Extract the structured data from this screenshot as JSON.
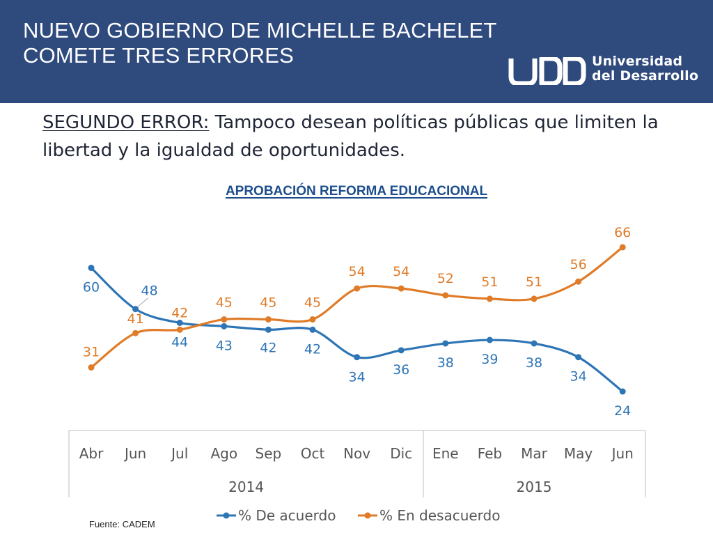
{
  "header": {
    "title_line1": "NUEVO GOBIERNO DE MICHELLE BACHELET",
    "title_line2": "COMETE TRES ERRORES",
    "logo_line1": "Universidad",
    "logo_line2": "del Desarrollo"
  },
  "subtitle": {
    "lead": "SEGUNDO ERROR:",
    "text": " Tampoco desean políticas públicas que limiten la libertad y la igualdad de oportunidades."
  },
  "colors": {
    "header_bg": "#2f4a7d",
    "series_acuerdo": "#2e75b6",
    "series_desacuerdo": "#e07b28",
    "chart_title": "#1c4e8d"
  },
  "chart_data": {
    "type": "line",
    "title": "APROBACIÓN REFORMA EDUCACIONAL",
    "categories": [
      "Abr",
      "Jun",
      "Jul",
      "Ago",
      "Sep",
      "Oct",
      "Nov",
      "Dic",
      "Ene",
      "Feb",
      "Mar",
      "May",
      "Jun"
    ],
    "groups": [
      {
        "label": "2014",
        "start": 0,
        "end": 7
      },
      {
        "label": "2015",
        "start": 8,
        "end": 12
      }
    ],
    "series": [
      {
        "name": "% De acuerdo",
        "color": "#2e75b6",
        "values": [
          60,
          48,
          44,
          43,
          42,
          42,
          34,
          36,
          38,
          39,
          38,
          34,
          24
        ]
      },
      {
        "name": "% En desacuerdo",
        "color": "#e07b28",
        "values": [
          31,
          41,
          42,
          45,
          45,
          45,
          54,
          54,
          52,
          51,
          51,
          56,
          66
        ]
      }
    ],
    "legend_position": "bottom",
    "grid": false,
    "xlabel": "",
    "ylabel": ""
  },
  "source": "Fuente: CADEM"
}
